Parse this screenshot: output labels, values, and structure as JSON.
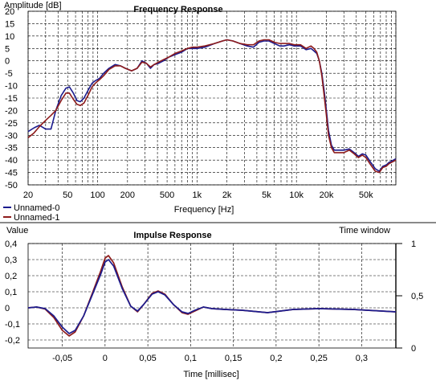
{
  "chart_data": [
    {
      "type": "line",
      "title": "Frequency Response",
      "ylabel": "Amplitude [dB]",
      "xlabel": "Frequency [Hz]",
      "xscale": "log",
      "xlim": [
        20,
        100000
      ],
      "ylim": [
        -50,
        20
      ],
      "grid": true,
      "legend_position": "bottom-left",
      "x_tick_labels": [
        {
          "value": 20,
          "label": "20"
        },
        {
          "value": 50,
          "label": "50"
        },
        {
          "value": 100,
          "label": "100"
        },
        {
          "value": 200,
          "label": "200"
        },
        {
          "value": 500,
          "label": "500"
        },
        {
          "value": 1000,
          "label": "1k"
        },
        {
          "value": 2000,
          "label": "2k"
        },
        {
          "value": 5000,
          "label": "5k"
        },
        {
          "value": 10000,
          "label": "10k"
        },
        {
          "value": 20000,
          "label": "20k"
        },
        {
          "value": 50000,
          "label": "50k"
        }
      ],
      "y_ticks": [
        20,
        15,
        10,
        5,
        0,
        -5,
        -10,
        -15,
        -20,
        -25,
        -30,
        -35,
        -40,
        -45,
        -50
      ],
      "series": [
        {
          "name": "Unnamed-0",
          "color": "#1c1c8e",
          "points": [
            [
              20,
              -28.5
            ],
            [
              23,
              -27
            ],
            [
              26,
              -26
            ],
            [
              30,
              -27.5
            ],
            [
              34,
              -27.5
            ],
            [
              38,
              -20
            ],
            [
              43,
              -14
            ],
            [
              48,
              -11
            ],
            [
              52,
              -10.5
            ],
            [
              57,
              -13
            ],
            [
              62,
              -16
            ],
            [
              67,
              -16.5
            ],
            [
              73,
              -15
            ],
            [
              80,
              -12
            ],
            [
              88,
              -9
            ],
            [
              95,
              -8
            ],
            [
              105,
              -7
            ],
            [
              115,
              -5
            ],
            [
              130,
              -3
            ],
            [
              150,
              -1.5
            ],
            [
              170,
              -2
            ],
            [
              190,
              -3
            ],
            [
              220,
              -4
            ],
            [
              250,
              -3
            ],
            [
              280,
              0
            ],
            [
              310,
              -1
            ],
            [
              340,
              -3
            ],
            [
              370,
              -1.5
            ],
            [
              410,
              -1
            ],
            [
              460,
              0
            ],
            [
              520,
              1.5
            ],
            [
              600,
              2.5
            ],
            [
              700,
              3.5
            ],
            [
              800,
              5
            ],
            [
              900,
              5
            ],
            [
              1000,
              5
            ],
            [
              1200,
              5.5
            ],
            [
              1500,
              7
            ],
            [
              1800,
              8
            ],
            [
              2000,
              8.5
            ],
            [
              2300,
              8
            ],
            [
              2700,
              7
            ],
            [
              3200,
              6
            ],
            [
              3700,
              5.5
            ],
            [
              4200,
              7.5
            ],
            [
              4700,
              8
            ],
            [
              5300,
              8
            ],
            [
              6000,
              7
            ],
            [
              6800,
              6
            ],
            [
              7500,
              6
            ],
            [
              8500,
              6.5
            ],
            [
              9500,
              6
            ],
            [
              11000,
              6
            ],
            [
              12500,
              4.5
            ],
            [
              14000,
              5
            ],
            [
              15000,
              4
            ],
            [
              16000,
              3
            ],
            [
              17000,
              0
            ],
            [
              18000,
              -5
            ],
            [
              19000,
              -12
            ],
            [
              20000,
              -20
            ],
            [
              21000,
              -28
            ],
            [
              22500,
              -34
            ],
            [
              24000,
              -36
            ],
            [
              26000,
              -36
            ],
            [
              30000,
              -36
            ],
            [
              34000,
              -35.5
            ],
            [
              38000,
              -37
            ],
            [
              42000,
              -38.5
            ],
            [
              46000,
              -37.5
            ],
            [
              50000,
              -38
            ],
            [
              56000,
              -41
            ],
            [
              62000,
              -43.5
            ],
            [
              68000,
              -44.5
            ],
            [
              74000,
              -42.5
            ],
            [
              80000,
              -42
            ],
            [
              85000,
              -41
            ],
            [
              90000,
              -40.5
            ],
            [
              95000,
              -40
            ],
            [
              100000,
              -39.5
            ]
          ]
        },
        {
          "name": "Unnamed-1",
          "color": "#8e1c1c",
          "points": [
            [
              20,
              -31
            ],
            [
              23,
              -29
            ],
            [
              26,
              -26.5
            ],
            [
              30,
              -24
            ],
            [
              34,
              -22
            ],
            [
              38,
              -20
            ],
            [
              43,
              -16
            ],
            [
              48,
              -13
            ],
            [
              52,
              -13
            ],
            [
              57,
              -15.5
            ],
            [
              62,
              -17.5
            ],
            [
              67,
              -18
            ],
            [
              73,
              -17
            ],
            [
              80,
              -14
            ],
            [
              88,
              -10.5
            ],
            [
              95,
              -9
            ],
            [
              105,
              -7.5
            ],
            [
              115,
              -6
            ],
            [
              130,
              -3.5
            ],
            [
              150,
              -2
            ],
            [
              170,
              -2
            ],
            [
              190,
              -3
            ],
            [
              220,
              -4
            ],
            [
              250,
              -3
            ],
            [
              280,
              -0.5
            ],
            [
              310,
              -1
            ],
            [
              340,
              -2.5
            ],
            [
              370,
              -1.5
            ],
            [
              410,
              -0.5
            ],
            [
              460,
              0.5
            ],
            [
              520,
              1.5
            ],
            [
              600,
              3
            ],
            [
              700,
              4
            ],
            [
              800,
              5
            ],
            [
              900,
              5.5
            ],
            [
              1000,
              5.5
            ],
            [
              1200,
              6
            ],
            [
              1500,
              7
            ],
            [
              1800,
              8
            ],
            [
              2000,
              8.5
            ],
            [
              2300,
              8
            ],
            [
              2700,
              7
            ],
            [
              3200,
              6.5
            ],
            [
              3700,
              6.5
            ],
            [
              4200,
              8
            ],
            [
              4700,
              8.5
            ],
            [
              5300,
              8.5
            ],
            [
              6000,
              7.5
            ],
            [
              6800,
              7
            ],
            [
              7500,
              7
            ],
            [
              8500,
              7
            ],
            [
              9500,
              6.5
            ],
            [
              11000,
              6.5
            ],
            [
              12500,
              5
            ],
            [
              14000,
              6
            ],
            [
              15000,
              5
            ],
            [
              16000,
              3.5
            ],
            [
              17000,
              0
            ],
            [
              18000,
              -6
            ],
            [
              19000,
              -14
            ],
            [
              20000,
              -22
            ],
            [
              21000,
              -30
            ],
            [
              22500,
              -35
            ],
            [
              24000,
              -37
            ],
            [
              26000,
              -37
            ],
            [
              30000,
              -37
            ],
            [
              34000,
              -36
            ],
            [
              38000,
              -37.5
            ],
            [
              42000,
              -39
            ],
            [
              46000,
              -38
            ],
            [
              50000,
              -39
            ],
            [
              56000,
              -42
            ],
            [
              62000,
              -44.5
            ],
            [
              68000,
              -45
            ],
            [
              74000,
              -43
            ],
            [
              80000,
              -42.5
            ],
            [
              85000,
              -41.5
            ],
            [
              90000,
              -41
            ],
            [
              95000,
              -40.5
            ],
            [
              100000,
              -40
            ]
          ]
        }
      ]
    },
    {
      "type": "line",
      "title": "Impulse Response",
      "ylabel": "Value",
      "xlabel": "Time [millisec]",
      "right_axis_label": "Time window",
      "xlim": [
        -0.09,
        0.34
      ],
      "ylim": [
        -0.25,
        0.4
      ],
      "grid": true,
      "x_tick_labels": [
        {
          "value": -0.05,
          "label": "-0,05"
        },
        {
          "value": 0,
          "label": "0"
        },
        {
          "value": 0.05,
          "label": "0,05"
        },
        {
          "value": 0.1,
          "label": "0,1"
        },
        {
          "value": 0.15,
          "label": "0,15"
        },
        {
          "value": 0.2,
          "label": "0,2"
        },
        {
          "value": 0.25,
          "label": "0,25"
        },
        {
          "value": 0.3,
          "label": "0,3"
        }
      ],
      "y_tick_labels": [
        {
          "value": 0.4,
          "label": "0,4"
        },
        {
          "value": 0.3,
          "label": "0,3"
        },
        {
          "value": 0.2,
          "label": "0,2"
        },
        {
          "value": 0.1,
          "label": "0,1"
        },
        {
          "value": 0,
          "label": "0"
        },
        {
          "value": -0.1,
          "label": "-0,1"
        },
        {
          "value": -0.2,
          "label": "-0,2"
        }
      ],
      "right_ticks": [
        {
          "value": 1,
          "label": "1"
        },
        {
          "value": 0.5,
          "label": "0,5"
        },
        {
          "value": 0,
          "label": "0"
        }
      ],
      "series": [
        {
          "color": "#1c1c8e",
          "points": [
            [
              -0.09,
              0
            ],
            [
              -0.08,
              0.005
            ],
            [
              -0.07,
              -0.005
            ],
            [
              -0.06,
              -0.05
            ],
            [
              -0.05,
              -0.12
            ],
            [
              -0.042,
              -0.16
            ],
            [
              -0.035,
              -0.14
            ],
            [
              -0.025,
              -0.05
            ],
            [
              -0.015,
              0.08
            ],
            [
              -0.005,
              0.21
            ],
            [
              0,
              0.285
            ],
            [
              0.004,
              0.3
            ],
            [
              0.01,
              0.26
            ],
            [
              0.02,
              0.12
            ],
            [
              0.03,
              0.01
            ],
            [
              0.038,
              -0.02
            ],
            [
              0.045,
              0.02
            ],
            [
              0.055,
              0.085
            ],
            [
              0.062,
              0.1
            ],
            [
              0.07,
              0.08
            ],
            [
              0.08,
              0.02
            ],
            [
              0.09,
              -0.025
            ],
            [
              0.097,
              -0.035
            ],
            [
              0.105,
              -0.015
            ],
            [
              0.115,
              0.005
            ],
            [
              0.125,
              -0.005
            ],
            [
              0.14,
              -0.01
            ],
            [
              0.16,
              -0.015
            ],
            [
              0.19,
              -0.03
            ],
            [
              0.22,
              -0.01
            ],
            [
              0.25,
              -0.005
            ],
            [
              0.29,
              -0.01
            ],
            [
              0.34,
              -0.025
            ]
          ]
        },
        {
          "color": "#8e1c1c",
          "points": [
            [
              -0.09,
              0
            ],
            [
              -0.08,
              0.005
            ],
            [
              -0.07,
              -0.008
            ],
            [
              -0.06,
              -0.06
            ],
            [
              -0.05,
              -0.14
            ],
            [
              -0.042,
              -0.175
            ],
            [
              -0.035,
              -0.15
            ],
            [
              -0.025,
              -0.05
            ],
            [
              -0.015,
              0.09
            ],
            [
              -0.005,
              0.23
            ],
            [
              0,
              0.31
            ],
            [
              0.004,
              0.325
            ],
            [
              0.01,
              0.28
            ],
            [
              0.02,
              0.13
            ],
            [
              0.03,
              0.01
            ],
            [
              0.038,
              -0.025
            ],
            [
              0.045,
              0.02
            ],
            [
              0.055,
              0.09
            ],
            [
              0.062,
              0.105
            ],
            [
              0.07,
              0.085
            ],
            [
              0.08,
              0.02
            ],
            [
              0.09,
              -0.03
            ],
            [
              0.097,
              -0.04
            ],
            [
              0.105,
              -0.02
            ],
            [
              0.115,
              0.005
            ],
            [
              0.125,
              -0.005
            ],
            [
              0.14,
              -0.01
            ],
            [
              0.16,
              -0.015
            ],
            [
              0.19,
              -0.03
            ],
            [
              0.22,
              -0.01
            ],
            [
              0.25,
              -0.005
            ],
            [
              0.29,
              -0.01
            ],
            [
              0.34,
              -0.025
            ]
          ]
        }
      ]
    }
  ]
}
